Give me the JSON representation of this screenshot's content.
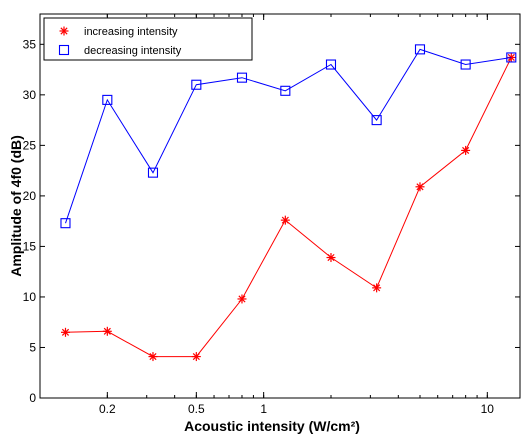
{
  "chart_data": {
    "type": "line",
    "xscale": "log",
    "xlim": [
      0.1,
      14
    ],
    "ylim": [
      0,
      38
    ],
    "xticks": [
      0.2,
      0.5,
      1,
      10
    ],
    "xtick_labels": [
      "0.2",
      "0.5",
      "1",
      "10"
    ],
    "yticks": [
      0,
      5,
      10,
      15,
      20,
      25,
      30,
      35
    ],
    "ytick_labels": [
      "0",
      "5",
      "10",
      "15",
      "20",
      "25",
      "30",
      "35"
    ],
    "xlabel": "Acoustic intensity (W/cm²)",
    "ylabel": "Amplitude of 4f0 (dB)",
    "grid": false,
    "legend_position": "top-left",
    "x": [
      0.13,
      0.2,
      0.32,
      0.5,
      0.8,
      1.25,
      2.0,
      3.2,
      5.0,
      8.0,
      12.8
    ],
    "series": [
      {
        "name": "increasing intensity",
        "color": "#ff0000",
        "marker": "asterisk",
        "values": [
          6.5,
          6.6,
          4.1,
          4.1,
          9.8,
          17.6,
          13.9,
          10.9,
          20.9,
          24.5,
          33.7
        ]
      },
      {
        "name": "decreasing intensity",
        "color": "#0000ff",
        "marker": "square",
        "values": [
          17.3,
          29.5,
          22.3,
          31.0,
          31.7,
          30.4,
          33.0,
          27.5,
          34.5,
          33.0,
          33.7
        ]
      }
    ]
  }
}
